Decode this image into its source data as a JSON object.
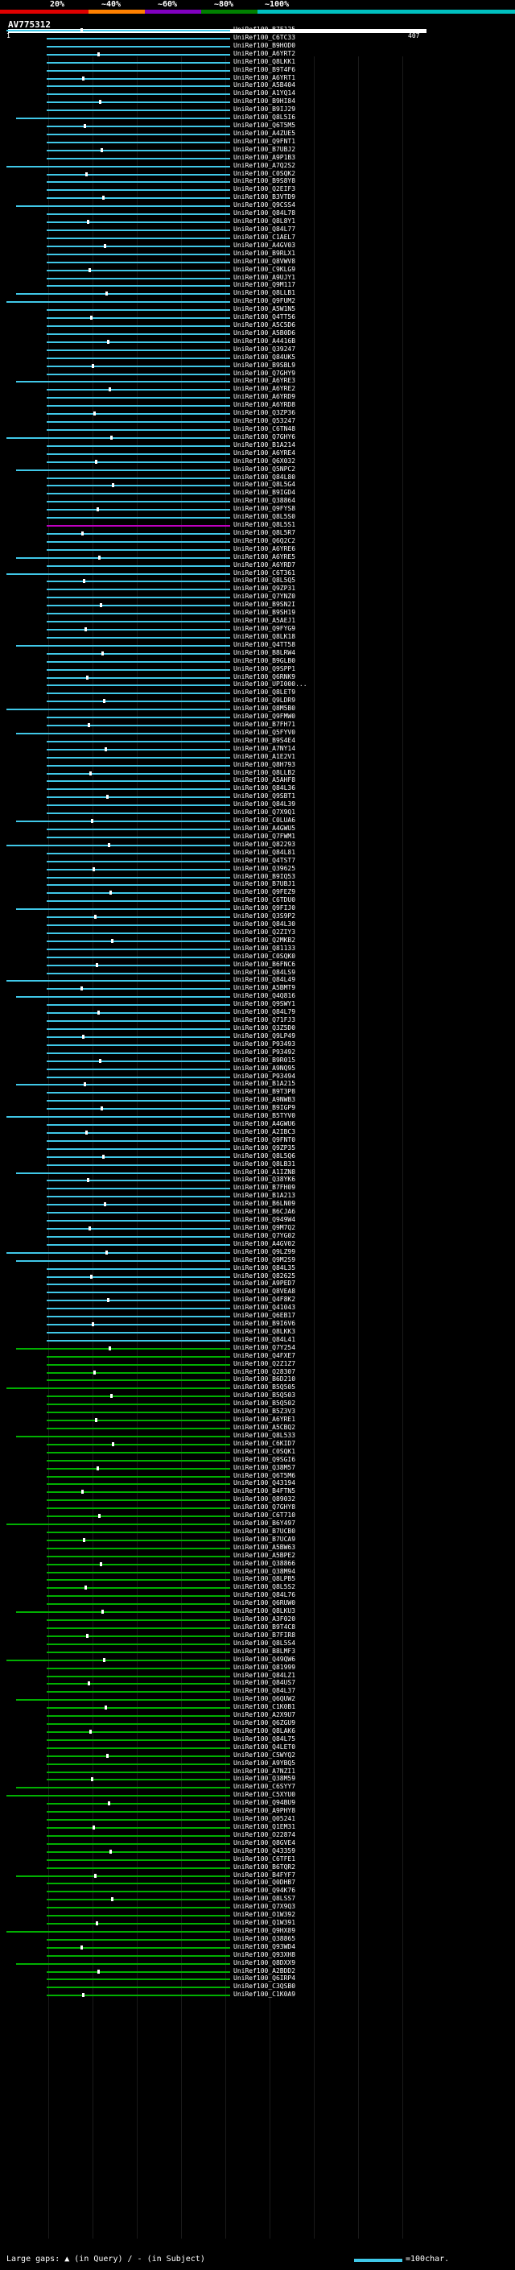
{
  "scale": {
    "labels": [
      "20%",
      "~40%",
      "~60%",
      "~80%",
      "~100%"
    ],
    "colors": [
      "#e00000",
      "#ff8000",
      "#8000c0",
      "#008000",
      "#00c0c0"
    ]
  },
  "query": {
    "name": "AV775312",
    "start_label": "1",
    "end_label": "407"
  },
  "colors": {
    "green": "#00b000",
    "cyan": "#40c8e8",
    "magenta": "#c000c0",
    "grid": "#1a1a1a"
  },
  "hits": [
    "UniRef100_B7F125",
    "UniRef100_C6TC33",
    "UniRef100_B9HOD0",
    "UniRef100_A6YRT2",
    "UniRef100_Q8LKK1",
    "UniRef100_B9T4F6",
    "UniRef100_A6YRT1",
    "UniRef100_A5B404",
    "UniRef100_A1YQ14",
    "UniRef100_B9HI84",
    "UniRef100_B9IJ29",
    "UniRef100_Q8L5I6",
    "UniRef100_Q6T5M5",
    "UniRef100_A4ZUE5",
    "UniRef100_Q9FNT1",
    "UniRef100_B7UBJ2",
    "UniRef100_A9P1B3",
    "UniRef100_A7Q2S2",
    "UniRef100_C0SQK2",
    "UniRef100_B9S8Y8",
    "UniRef100_Q2EIF3",
    "UniRef100_B3VTD9",
    "UniRef100_Q9CSS4",
    "UniRef100_Q84L78",
    "UniRef100_Q8L8Y1",
    "UniRef100_Q84L77",
    "UniRef100_C1AEL7",
    "UniRef100_A4GV03",
    "UniRef100_B9RLX1",
    "UniRef100_Q8VWV8",
    "UniRef100_C9KLG9",
    "UniRef100_A9UJY1",
    "UniRef100_Q9M117",
    "UniRef100_Q8LLB1",
    "UniRef100_Q9FUM2",
    "UniRef100_A5W1N5",
    "UniRef100_Q4TT56",
    "UniRef100_A5C5D6",
    "UniRef100_A5B0D6",
    "UniRef100_A4416B",
    "UniRef100_Q39247",
    "UniRef100_Q84UK5",
    "UniRef100_B9SBL9",
    "UniRef100_Q7GHY9",
    "UniRef100_A6YRE3",
    "UniRef100_A6YRE2",
    "UniRef100_A6YRD9",
    "UniRef100_A6YRD8",
    "UniRef100_Q3ZP36",
    "UniRef100_Q53247",
    "UniRef100_C6TN48",
    "UniRef100_Q7GHY6",
    "UniRef100_B1A214",
    "UniRef100_A6YRE4",
    "UniRef100_Q6X032",
    "UniRef100_Q5NPC2",
    "UniRef100_Q84L80",
    "UniRef100_Q8L5G4",
    "UniRef100_B9IGD4",
    "UniRef100_Q38864",
    "UniRef100_Q9FYS8",
    "UniRef100_Q8L5S0",
    "UniRef100_Q8L5S1",
    "UniRef100_Q8L5R7",
    "UniRef100_Q6Q2C2",
    "UniRef100_A6YRE6",
    "UniRef100_A6YRE5",
    "UniRef100_A6YRD7",
    "UniRef100_C6T361",
    "UniRef100_Q8L5Q5",
    "UniRef100_Q9ZP31",
    "UniRef100_Q7YNZ0",
    "UniRef100_B9SN2I",
    "UniRef100_B9SH19",
    "UniRef100_A5AEJ1",
    "UniRef100_Q9FYG9",
    "UniRef100_Q8LK18",
    "UniRef100_Q4TT58",
    "UniRef100_B8LRW4",
    "UniRef100_B9GLB0",
    "UniRef100_Q9SPP1",
    "UniRef100_Q6RNK9",
    "UniRef100_UPI000...",
    "UniRef100_Q8LET9",
    "UniRef100_Q9LDR9",
    "UniRef100_Q8M5B0",
    "UniRef100_Q9FMW0",
    "UniRef100_B7FH71",
    "UniRef100_Q5FYV0",
    "UniRef100_B9S4E4",
    "UniRef100_A7NY14",
    "UniRef100_A1E2V1",
    "UniRef100_Q8H793",
    "UniRef100_Q8LLB2",
    "UniRef100_A5AHF8",
    "UniRef100_Q84L36",
    "UniRef100_Q9SBT1",
    "UniRef100_Q84L39",
    "UniRef100_Q7X9Q1",
    "UniRef100_C0LUA6",
    "UniRef100_A4GWU5",
    "UniRef100_Q7FWM1",
    "UniRef100_Q82293",
    "UniRef100_Q84L81",
    "UniRef100_Q4TST7",
    "UniRef100_Q39625",
    "UniRef100_B9IQ53",
    "UniRef100_B7UBJ1",
    "UniRef100_Q9FEZ9",
    "UniRef100_C6TDU0",
    "UniRef100_Q9FIJ0",
    "UniRef100_Q3S9P2",
    "UniRef100_Q84L30",
    "UniRef100_Q2ZIY3",
    "UniRef100_Q2MKB2",
    "UniRef100_Q81133",
    "UniRef100_C0SQK0",
    "UniRef100_B6FNC6",
    "UniRef100_Q84LS9",
    "UniRef100_Q84L49",
    "UniRef100_A5BMT9",
    "UniRef100_Q4Q816",
    "UniRef100_Q9SWY1",
    "UniRef100_Q84L79",
    "UniRef100_Q71FJ3",
    "UniRef100_Q3Z5D0",
    "UniRef100_Q9LP49",
    "UniRef100_P93493",
    "UniRef100_P93492",
    "UniRef100_B9R015",
    "UniRef100_A9NQ95",
    "UniRef100_P93494",
    "UniRef100_B1A215",
    "UniRef100_B9T3P8",
    "UniRef100_A9NWB3",
    "UniRef100_B9IGP9",
    "UniRef100_B5TYV0",
    "UniRef100_A4GWU6",
    "UniRef100_A2IBC3",
    "UniRef100_Q9FNT0",
    "UniRef100_Q9ZP35",
    "UniRef100_Q8L5Q6",
    "UniRef100_Q8LB31",
    "UniRef100_A1IZN8",
    "UniRef100_Q38YK6",
    "UniRef100_B7FH09",
    "UniRef100_B1A213",
    "UniRef100_B6LN09",
    "UniRef100_B6CJA6",
    "UniRef100_Q949W4",
    "UniRef100_Q9M7Q2",
    "UniRef100_Q7YG02",
    "UniRef100_A4GV02",
    "UniRef100_Q9LZ99",
    "UniRef100_Q9M2S9",
    "UniRef100_Q84L35",
    "UniRef100_Q82625",
    "UniRef100_A9PED7",
    "UniRef100_Q8VEA8",
    "UniRef100_Q4F8K2",
    "UniRef100_Q41043",
    "UniRef100_Q6EB17",
    "UniRef100_B9I6V6",
    "UniRef100_Q8LKK3",
    "UniRef100_Q84L41",
    "UniRef100_Q7Y254",
    "UniRef100_Q4FXE7",
    "UniRef100_Q2Z1Z7",
    "UniRef100_Q28307",
    "UniRef100_B6D210",
    "UniRef100_B5Q505",
    "UniRef100_B5Q503",
    "UniRef100_B5Q502",
    "UniRef100_B5Z3V3",
    "UniRef100_A6YRE1",
    "UniRef100_A5CBQ2",
    "UniRef100_Q8L533",
    "UniRef100_C6KID7",
    "UniRef100_C0SQK1",
    "UniRef100_Q9SGI6",
    "UniRef100_Q38M57",
    "UniRef100_Q6T5M6",
    "UniRef100_Q43194",
    "UniRef100_B4FTN5",
    "UniRef100_Q89032",
    "UniRef100_Q7GHY8",
    "UniRef100_C6T710",
    "UniRef100_B6Y497",
    "UniRef100_B7UCB0",
    "UniRef100_B7UCA9",
    "UniRef100_A5BW63",
    "UniRef100_A5BPE2",
    "UniRef100_Q38866",
    "UniRef100_Q38M94",
    "UniRef100_Q8LPB5",
    "UniRef100_Q8L5S2",
    "UniRef100_Q84L76",
    "UniRef100_Q6RUW0",
    "UniRef100_Q8LKU3",
    "UniRef100_A3F020",
    "UniRef100_B9T4C8",
    "UniRef100_B7FIR8",
    "UniRef100_Q8L5S4",
    "UniRef100_B8LMF3",
    "UniRef100_Q49QW6",
    "UniRef100_Q81999",
    "UniRef100_Q84LZ1",
    "UniRef100_Q84US7",
    "UniRef100_Q84L37",
    "UniRef100_Q6QUW2",
    "UniRef100_C1K0B1",
    "UniRef100_A2X9U7",
    "UniRef100_Q6ZGU9",
    "UniRef100_Q8LAK6",
    "UniRef100_Q84L75",
    "UniRef100_Q4LET0",
    "UniRef100_C5WYQ2",
    "UniRef100_A9YBQ5",
    "UniRef100_A7NZI1",
    "UniRef100_Q38M59",
    "UniRef100_C6SYY7",
    "UniRef100_C5XYU0",
    "UniRef100_Q94BU9",
    "UniRef100_A9PHY8",
    "UniRef100_Q05241",
    "UniRef100_Q1EM31",
    "UniRef100_O22874",
    "UniRef100_Q8GVE4",
    "UniRef100_Q43359",
    "UniRef100_C6TFE1",
    "UniRef100_B6TQR2",
    "UniRef100_B4FYF7",
    "UniRef100_Q0DHB7",
    "UniRef100_Q94K76",
    "UniRef100_Q8LSS7",
    "UniRef100_Q7X9Q3",
    "UniRef100_O1W392",
    "UniRef100_Q1W391",
    "UniRef100_Q9HX89",
    "UniRef100_Q38865",
    "UniRef100_Q93WD4",
    "UniRef100_Q93XH8",
    "UniRef100_Q8DXX9",
    "UniRef100_A2BDD2",
    "UniRef100_Q6IRP4",
    "UniRef100_C3QSB0",
    "UniRef100_C1K0A9"
  ],
  "footer": {
    "legend_text": "Large gaps: ▲ (in Query) / - (in Subject)",
    "scale_text": "=100char."
  }
}
